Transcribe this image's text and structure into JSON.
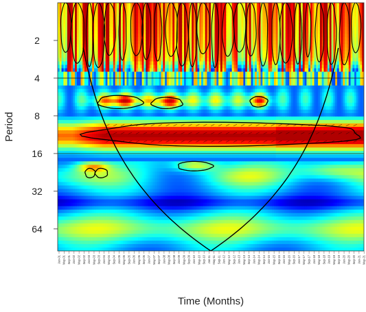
{
  "chart_data": {
    "type": "heatmap",
    "subtype": "wavelet-power-spectrum",
    "xlabel": "Time (Months)",
    "ylabel": "Period",
    "y_scale": "log2",
    "y_ticks": [
      2,
      4,
      8,
      16,
      32,
      64
    ],
    "y_range": [
      1,
      96
    ],
    "x_ticks_every_months": 4,
    "x_first_tick": "Jan-01",
    "x_last_tick": "May-21",
    "months": [
      "Jan",
      "Feb",
      "Mar",
      "Apr",
      "May",
      "Jun",
      "Jul",
      "Aug",
      "Sep",
      "Oct",
      "Nov",
      "Dec"
    ],
    "x_tick_labels": [
      "Jan-01",
      "May-01",
      "Sep-01",
      "Jan-02",
      "May-02",
      "Sep-02",
      "Jan-03",
      "May-03",
      "Sep-03",
      "Jan-04",
      "May-04",
      "Sep-04",
      "Jan-05",
      "May-05",
      "Sep-05",
      "Jan-06",
      "May-06",
      "Sep-06",
      "Jan-07",
      "May-07",
      "Sep-07",
      "Jan-08",
      "May-08",
      "Sep-08",
      "Jan-09",
      "May-09",
      "Sep-09",
      "Jan-10",
      "May-10",
      "Sep-10",
      "Jan-11",
      "May-11",
      "Sep-11",
      "Jan-12",
      "May-12",
      "Sep-12",
      "Jan-13",
      "May-13",
      "Sep-13",
      "Jan-14",
      "May-14",
      "Sep-14",
      "Jan-15",
      "May-15",
      "Sep-15",
      "Jan-16",
      "May-16",
      "Sep-16",
      "Jan-17",
      "May-17",
      "Sep-17",
      "Jan-18",
      "May-18",
      "Sep-18",
      "Jan-19",
      "May-19",
      "Sep-19",
      "Jan-20",
      "May-20",
      "Sep-20",
      "Jan-21",
      "May-21"
    ],
    "colormap": [
      "#00007f",
      "#0000ff",
      "#007fff",
      "#00ffff",
      "#7fff7f",
      "#ffff00",
      "#ff7f00",
      "#ff0000",
      "#b00000"
    ],
    "reference_lines_period": [
      4,
      16
    ],
    "significant_regions": [
      {
        "name": "12-month band",
        "t_start": 24,
        "t_end": 245,
        "period_low": 9,
        "period_high": 14
      },
      {
        "name": "6-month patch A",
        "t_start": 32,
        "t_end": 68,
        "period_low": 5.5,
        "period_high": 7
      },
      {
        "name": "6-month patch B",
        "t_start": 75,
        "t_end": 100,
        "period_low": 5.7,
        "period_high": 7
      },
      {
        "name": "6-month patch C",
        "t_start": 154,
        "t_end": 168,
        "period_low": 5.6,
        "period_high": 6.8
      },
      {
        "name": "24-month patch A",
        "t_start": 22,
        "t_end": 30,
        "period_low": 21,
        "period_high": 25
      },
      {
        "name": "24-month patch B",
        "t_start": 30,
        "t_end": 40,
        "period_low": 21,
        "period_high": 25
      },
      {
        "name": "24-month patch C",
        "t_start": 96,
        "t_end": 124,
        "period_low": 18.5,
        "period_high": 22
      }
    ]
  }
}
